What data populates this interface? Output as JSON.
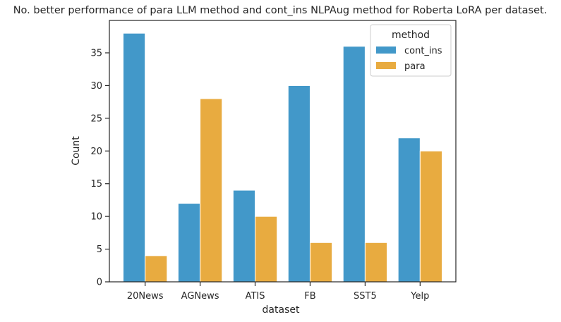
{
  "chart_data": {
    "type": "bar",
    "title": "No. better performance of para LLM method and cont_ins NLPAug method for Roberta LoRA per dataset.",
    "xlabel": "dataset",
    "ylabel": "Count",
    "categories": [
      "20News",
      "AGNews",
      "ATIS",
      "FB",
      "SST5",
      "Yelp"
    ],
    "series": [
      {
        "name": "cont_ins",
        "values": [
          38,
          12,
          14,
          30,
          36,
          22
        ],
        "color": "#4298c9"
      },
      {
        "name": "para",
        "values": [
          4,
          28,
          10,
          6,
          6,
          20
        ],
        "color": "#e8ab40"
      }
    ],
    "ylim": [
      0,
      40
    ],
    "yticks": [
      0,
      5,
      10,
      15,
      20,
      25,
      30,
      35
    ],
    "grid": false,
    "legend": {
      "title": "method",
      "position": "top-right"
    }
  }
}
